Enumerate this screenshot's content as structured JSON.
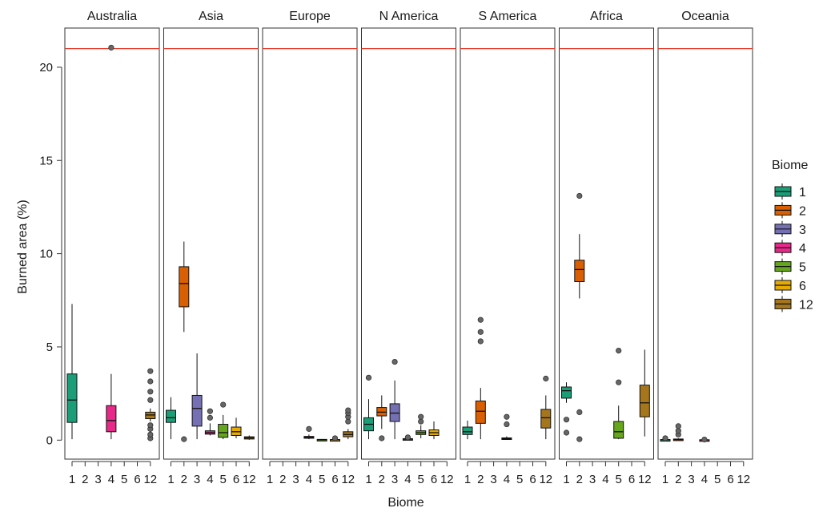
{
  "chart_data": {
    "type": "box",
    "ylabel": "Burned area (%)",
    "xlabel": "Biome",
    "ylim": [
      -1,
      22
    ],
    "yticks": [
      0,
      5,
      10,
      15,
      20
    ],
    "reference_line": 21.0,
    "reference_line_color": "#e8392a",
    "biome_codes": [
      "1",
      "2",
      "3",
      "4",
      "5",
      "6",
      "12"
    ],
    "legend": {
      "title": "Biome",
      "entries": [
        "1",
        "2",
        "3",
        "4",
        "5",
        "6",
        "12"
      ]
    },
    "colors": {
      "1": "#1b9e77",
      "2": "#d95f02",
      "3": "#7570b3",
      "4": "#e7298a",
      "5": "#66a61e",
      "6": "#e6ab02",
      "12": "#a6761d"
    },
    "panels": [
      {
        "name": "Australia",
        "boxes": [
          {
            "biome": "1",
            "min": 0.05,
            "q1": 0.95,
            "median": 2.15,
            "q3": 3.55,
            "max": 7.3,
            "outliers": []
          },
          {
            "biome": "4",
            "min": 0.05,
            "q1": 0.45,
            "median": 1.05,
            "q3": 1.85,
            "max": 3.55,
            "outliers": [
              21.05
            ]
          },
          {
            "biome": "12",
            "min": 1.0,
            "q1": 1.15,
            "median": 1.35,
            "q3": 1.5,
            "max": 1.7,
            "outliers": [
              0.1,
              0.3,
              0.6,
              0.8,
              2.15,
              2.6,
              3.15,
              3.7
            ]
          }
        ]
      },
      {
        "name": "Asia",
        "boxes": [
          {
            "biome": "1",
            "min": 0.05,
            "q1": 0.95,
            "median": 1.2,
            "q3": 1.6,
            "max": 2.3,
            "outliers": []
          },
          {
            "biome": "2",
            "min": 5.8,
            "q1": 7.15,
            "median": 8.4,
            "q3": 9.3,
            "max": 10.65,
            "outliers": [
              0.05
            ]
          },
          {
            "biome": "3",
            "min": 0.05,
            "q1": 0.75,
            "median": 1.7,
            "q3": 2.4,
            "max": 4.65,
            "outliers": []
          },
          {
            "biome": "4",
            "min": 0.25,
            "q1": 0.32,
            "median": 0.4,
            "q3": 0.5,
            "max": 0.9,
            "outliers": [
              1.2,
              1.55
            ]
          },
          {
            "biome": "5",
            "min": 0.05,
            "q1": 0.15,
            "median": 0.4,
            "q3": 0.85,
            "max": 1.35,
            "outliers": [
              1.9
            ]
          },
          {
            "biome": "6",
            "min": 0.1,
            "q1": 0.25,
            "median": 0.45,
            "q3": 0.7,
            "max": 1.2,
            "outliers": []
          },
          {
            "biome": "12",
            "min": 0.02,
            "q1": 0.06,
            "median": 0.12,
            "q3": 0.18,
            "max": 0.25,
            "outliers": []
          }
        ]
      },
      {
        "name": "Europe",
        "boxes": [
          {
            "biome": "4",
            "min": 0.05,
            "q1": 0.1,
            "median": 0.15,
            "q3": 0.2,
            "max": 0.3,
            "outliers": [
              0.6
            ]
          },
          {
            "biome": "5",
            "min": 0.0,
            "q1": 0.01,
            "median": 0.02,
            "q3": 0.04,
            "max": 0.06,
            "outliers": []
          },
          {
            "biome": "6",
            "min": 0.0,
            "q1": 0.01,
            "median": 0.02,
            "q3": 0.03,
            "max": 0.05,
            "outliers": [
              0.1
            ]
          },
          {
            "biome": "12",
            "min": 0.05,
            "q1": 0.18,
            "median": 0.3,
            "q3": 0.45,
            "max": 0.6,
            "outliers": [
              1.0,
              1.25,
              1.45,
              1.6
            ]
          }
        ]
      },
      {
        "name": "N America",
        "boxes": [
          {
            "biome": "1",
            "min": 0.05,
            "q1": 0.5,
            "median": 0.85,
            "q3": 1.2,
            "max": 2.2,
            "outliers": [
              3.35
            ]
          },
          {
            "biome": "2",
            "min": 0.6,
            "q1": 1.3,
            "median": 1.5,
            "q3": 1.75,
            "max": 2.4,
            "outliers": [
              0.1
            ]
          },
          {
            "biome": "3",
            "min": 0.05,
            "q1": 1.0,
            "median": 1.45,
            "q3": 1.95,
            "max": 3.2,
            "outliers": [
              4.2
            ]
          },
          {
            "biome": "4",
            "min": 0.0,
            "q1": 0.02,
            "median": 0.05,
            "q3": 0.08,
            "max": 0.12,
            "outliers": [
              0.15
            ]
          },
          {
            "biome": "5",
            "min": 0.1,
            "q1": 0.3,
            "median": 0.4,
            "q3": 0.5,
            "max": 0.8,
            "outliers": [
              1.0,
              1.25
            ]
          },
          {
            "biome": "6",
            "min": 0.05,
            "q1": 0.25,
            "median": 0.4,
            "q3": 0.55,
            "max": 1.0,
            "outliers": []
          }
        ]
      },
      {
        "name": "S America",
        "boxes": [
          {
            "biome": "1",
            "min": 0.05,
            "q1": 0.3,
            "median": 0.45,
            "q3": 0.7,
            "max": 1.05,
            "outliers": []
          },
          {
            "biome": "2",
            "min": 0.05,
            "q1": 0.9,
            "median": 1.55,
            "q3": 2.1,
            "max": 2.8,
            "outliers": [
              5.3,
              5.8,
              6.45
            ]
          },
          {
            "biome": "4",
            "min": 0.02,
            "q1": 0.05,
            "median": 0.08,
            "q3": 0.12,
            "max": 0.2,
            "outliers": [
              0.85,
              1.25
            ]
          },
          {
            "biome": "12",
            "min": 0.05,
            "q1": 0.65,
            "median": 1.2,
            "q3": 1.65,
            "max": 2.4,
            "outliers": [
              3.3
            ]
          }
        ]
      },
      {
        "name": "Africa",
        "boxes": [
          {
            "biome": "1",
            "min": 2.0,
            "q1": 2.25,
            "median": 2.65,
            "q3": 2.85,
            "max": 3.1,
            "outliers": [
              0.4,
              1.1
            ]
          },
          {
            "biome": "2",
            "min": 7.6,
            "q1": 8.5,
            "median": 9.15,
            "q3": 9.65,
            "max": 11.05,
            "outliers": [
              0.05,
              1.5,
              13.1
            ]
          },
          {
            "biome": "5",
            "min": 0.05,
            "q1": 0.1,
            "median": 0.45,
            "q3": 1.0,
            "max": 1.85,
            "outliers": [
              3.1,
              4.8
            ]
          },
          {
            "biome": "12",
            "min": 0.2,
            "q1": 1.25,
            "median": 2.0,
            "q3": 2.95,
            "max": 4.85,
            "outliers": []
          }
        ]
      },
      {
        "name": "Oceania",
        "boxes": [
          {
            "biome": "1",
            "min": 0.0,
            "q1": 0.01,
            "median": 0.02,
            "q3": 0.03,
            "max": 0.05,
            "outliers": [
              0.1
            ]
          },
          {
            "biome": "2",
            "min": 0.0,
            "q1": 0.01,
            "median": 0.03,
            "q3": 0.06,
            "max": 0.1,
            "outliers": [
              0.3,
              0.5,
              0.75
            ]
          },
          {
            "biome": "4",
            "min": 0.0,
            "q1": 0.0,
            "median": 0.01,
            "q3": 0.02,
            "max": 0.03,
            "outliers": [
              0.03
            ]
          }
        ]
      }
    ]
  }
}
